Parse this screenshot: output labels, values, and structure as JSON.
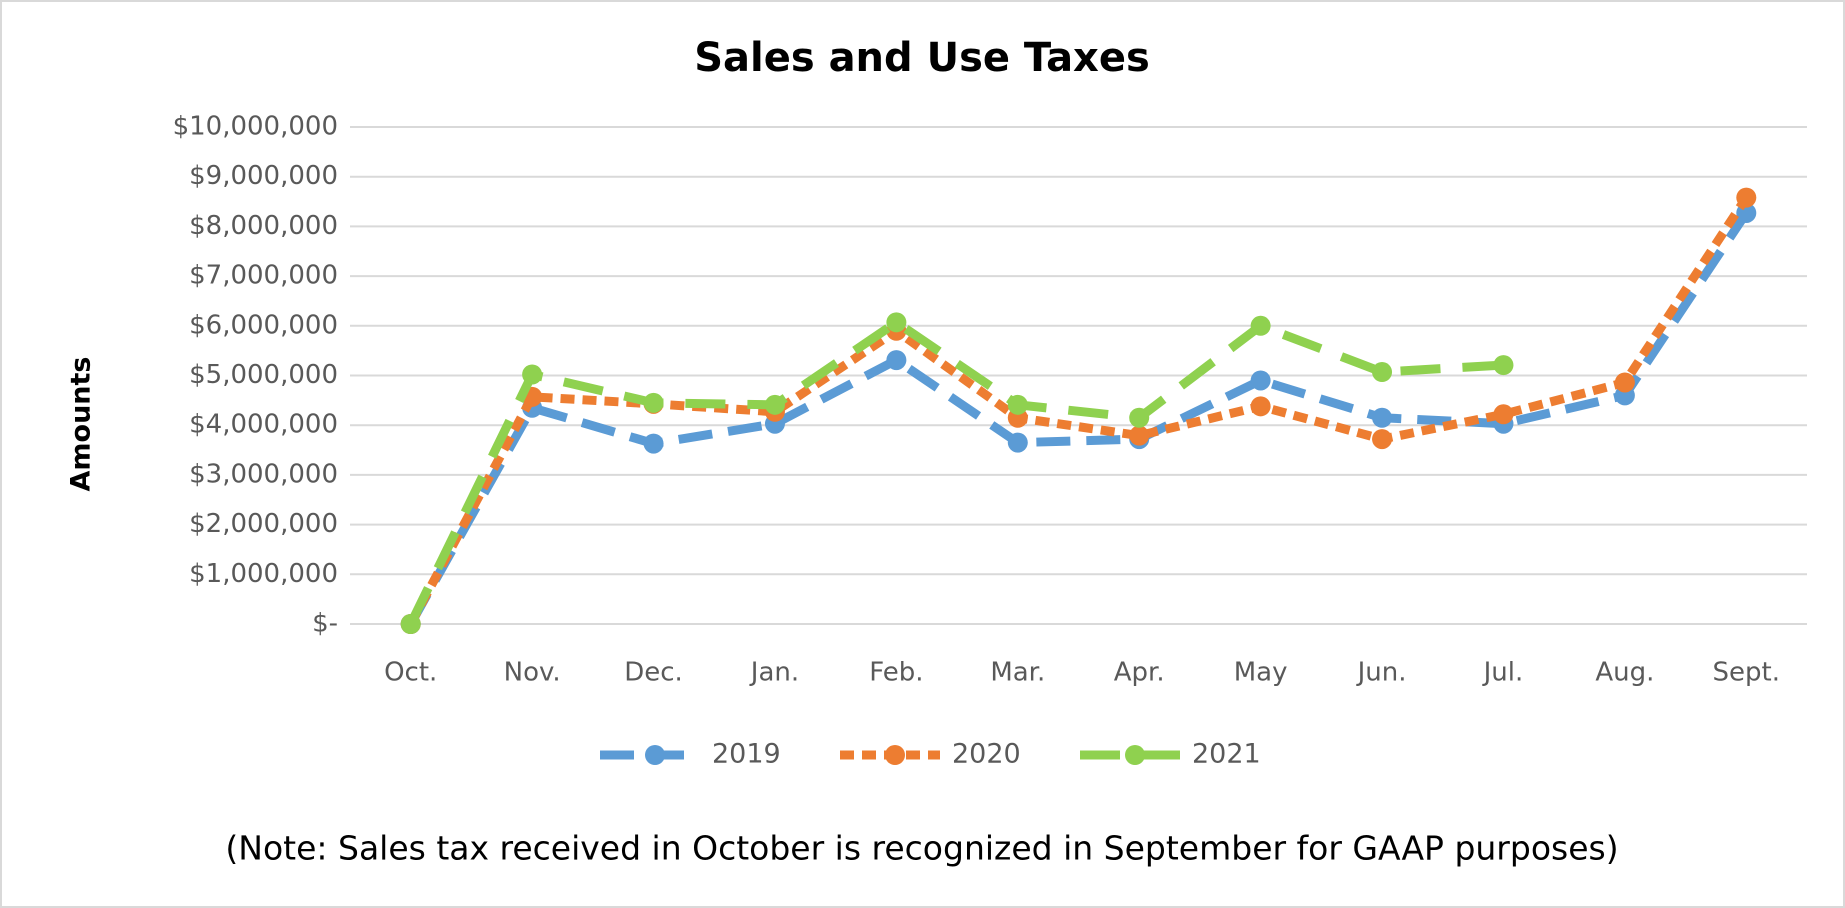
{
  "chart_data": {
    "type": "line",
    "title": "Sales and Use Taxes",
    "y_label": "Amounts",
    "note": "(Note: Sales tax received in October is recognized in September for GAAP purposes)",
    "categories": [
      "Oct.",
      "Nov.",
      "Dec.",
      "Jan.",
      "Feb.",
      "Mar.",
      "Apr.",
      "May",
      "Jun.",
      "Jul.",
      "Aug.",
      "Sept."
    ],
    "series": [
      {
        "name": "2019",
        "color": "#5b9bd5",
        "values": [
          0,
          4350000,
          3630000,
          4030000,
          5310000,
          3650000,
          3720000,
          4900000,
          4150000,
          4030000,
          4600000,
          8270000
        ]
      },
      {
        "name": "2020",
        "color": "#ed7d31",
        "values": [
          0,
          4570000,
          4430000,
          4270000,
          5900000,
          4150000,
          3790000,
          4380000,
          3720000,
          4220000,
          4860000,
          8580000
        ]
      },
      {
        "name": "2021",
        "color": "#8fd14f",
        "values": [
          0,
          5020000,
          4450000,
          4410000,
          6070000,
          4410000,
          4150000,
          6000000,
          5070000,
          5210000,
          null,
          null
        ]
      }
    ],
    "ylim": [
      0,
      10000000
    ],
    "yticks": [
      {
        "value": 0,
        "label": "$-"
      },
      {
        "value": 1000000,
        "label": "$1,000,000"
      },
      {
        "value": 2000000,
        "label": "$2,000,000"
      },
      {
        "value": 3000000,
        "label": "$3,000,000"
      },
      {
        "value": 4000000,
        "label": "$4,000,000"
      },
      {
        "value": 5000000,
        "label": "$5,000,000"
      },
      {
        "value": 6000000,
        "label": "$6,000,000"
      },
      {
        "value": 7000000,
        "label": "$7,000,000"
      },
      {
        "value": 8000000,
        "label": "$8,000,000"
      },
      {
        "value": 9000000,
        "label": "$9,000,000"
      },
      {
        "value": 10000000,
        "label": "$10,000,000"
      }
    ],
    "grid": true,
    "legend": "bottom"
  }
}
